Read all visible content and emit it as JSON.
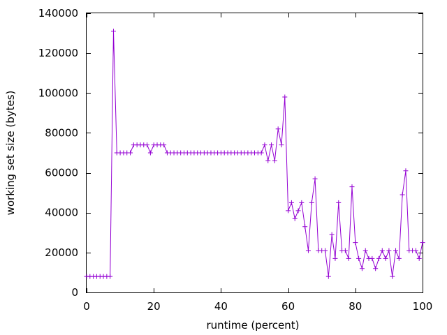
{
  "chart_data": {
    "type": "line",
    "title": "",
    "xlabel": "runtime (percent)",
    "ylabel": "working set size (bytes)",
    "xlim": [
      0,
      100
    ],
    "ylim": [
      0,
      140000
    ],
    "xticks": [
      0,
      20,
      40,
      60,
      80,
      100
    ],
    "yticks": [
      0,
      20000,
      40000,
      60000,
      80000,
      100000,
      120000,
      140000
    ],
    "grid": false,
    "legend": "none",
    "colors": {
      "series": "#9400d3",
      "axis": "#000000"
    },
    "series": [
      {
        "marker": "plus",
        "x": [
          0,
          1,
          2,
          3,
          4,
          5,
          6,
          7,
          8,
          9,
          10,
          11,
          12,
          13,
          14,
          15,
          16,
          17,
          18,
          19,
          20,
          21,
          22,
          23,
          24,
          25,
          26,
          27,
          28,
          29,
          30,
          31,
          32,
          33,
          34,
          35,
          36,
          37,
          38,
          39,
          40,
          41,
          42,
          43,
          44,
          45,
          46,
          47,
          48,
          49,
          50,
          51,
          52,
          53,
          54,
          55,
          56,
          57,
          58,
          59,
          60,
          61,
          62,
          63,
          64,
          65,
          66,
          67,
          68,
          69,
          70,
          71,
          72,
          73,
          74,
          75,
          76,
          77,
          78,
          79,
          80,
          81,
          82,
          83,
          84,
          85,
          86,
          87,
          88,
          89,
          90,
          91,
          92,
          93,
          94,
          95,
          96,
          97,
          98,
          99,
          100
        ],
        "y": [
          8000,
          8000,
          8000,
          8000,
          8000,
          8000,
          8000,
          8000,
          131000,
          70000,
          70000,
          70000,
          70000,
          70000,
          74000,
          74000,
          74000,
          74000,
          74000,
          70000,
          74000,
          74000,
          74000,
          74000,
          70000,
          70000,
          70000,
          70000,
          70000,
          70000,
          70000,
          70000,
          70000,
          70000,
          70000,
          70000,
          70000,
          70000,
          70000,
          70000,
          70000,
          70000,
          70000,
          70000,
          70000,
          70000,
          70000,
          70000,
          70000,
          70000,
          70000,
          70000,
          70000,
          74000,
          66000,
          74000,
          66000,
          82000,
          74000,
          98000,
          41000,
          45000,
          37000,
          41000,
          45000,
          33000,
          21000,
          45000,
          57000,
          21000,
          21000,
          21000,
          8000,
          29000,
          17000,
          45000,
          21000,
          21000,
          17000,
          53000,
          25000,
          17000,
          12000,
          21000,
          17000,
          17000,
          12000,
          17000,
          21000,
          17000,
          21000,
          8000,
          21000,
          17000,
          49000,
          61000,
          21000,
          21000,
          21000,
          17000,
          25000
        ]
      }
    ]
  }
}
